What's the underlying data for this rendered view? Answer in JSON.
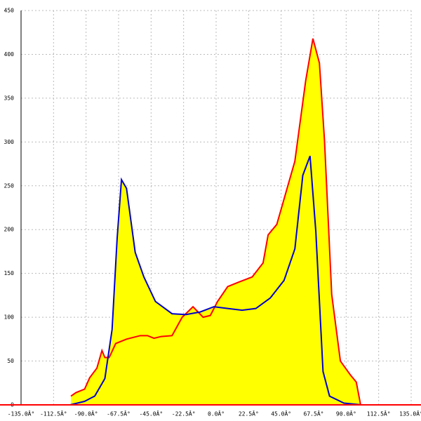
{
  "chart_data": {
    "type": "area",
    "xlim": [
      -135,
      135
    ],
    "ylim": [
      0,
      450
    ],
    "xticks": [
      {
        "value": -135,
        "label": "-135.0Â°"
      },
      {
        "value": -112.5,
        "label": "-112.5Â°"
      },
      {
        "value": -90,
        "label": "-90.0Â°"
      },
      {
        "value": -67.5,
        "label": "-67.5Â°"
      },
      {
        "value": -45,
        "label": "-45.0Â°"
      },
      {
        "value": -22.5,
        "label": "-22.5Â°"
      },
      {
        "value": 0,
        "label": "0.0Â°"
      },
      {
        "value": 22.5,
        "label": "22.5Â°"
      },
      {
        "value": 45,
        "label": "45.0Â°"
      },
      {
        "value": 67.5,
        "label": "67.5Â°"
      },
      {
        "value": 90,
        "label": "90.0Â°"
      },
      {
        "value": 112.5,
        "label": "112.5Â°"
      },
      {
        "value": 135,
        "label": "135.0Â°"
      }
    ],
    "yticks": [
      0,
      50,
      100,
      150,
      200,
      250,
      300,
      350,
      400,
      450
    ],
    "grid": true,
    "fill_color": "#ffff00",
    "series": [
      {
        "color": "#ff0000",
        "x": [
          -100.5,
          -97,
          -91,
          -87.5,
          -82.5,
          -79,
          -77,
          -74,
          -69.5,
          -62,
          -52.5,
          -47.5,
          -43,
          -38,
          -30.5,
          -23.5,
          -16,
          -9,
          -4,
          1,
          8,
          15.5,
          25,
          32.5,
          36,
          42,
          54.5,
          62,
          67,
          71.5,
          75,
          80,
          86,
          93,
          97,
          100
        ],
        "values": [
          10,
          14,
          18,
          31,
          42,
          62,
          54,
          54,
          70,
          75,
          79,
          79,
          76,
          78,
          79,
          100,
          112,
          100,
          102,
          118,
          135,
          140,
          146,
          162,
          194,
          206,
          278,
          370,
          418,
          390,
          302,
          126,
          50,
          34,
          26,
          0
        ]
      },
      {
        "color": "#0000cc",
        "x": [
          -101,
          -91,
          -84,
          -77,
          -72,
          -68.5,
          -65.5,
          -62,
          -56,
          -50,
          -42,
          -30.5,
          -21,
          -11,
          -1.5,
          8,
          18,
          27.5,
          37.5,
          47,
          54.5,
          60,
          65,
          69,
          74,
          78.5,
          88.5,
          100.5
        ],
        "values": [
          0,
          4,
          10,
          30,
          86,
          190,
          257,
          247,
          174,
          146,
          118,
          104,
          103,
          106,
          112,
          110,
          108,
          110,
          122,
          142,
          178,
          262,
          284,
          198,
          38,
          10,
          2,
          0
        ]
      }
    ]
  }
}
